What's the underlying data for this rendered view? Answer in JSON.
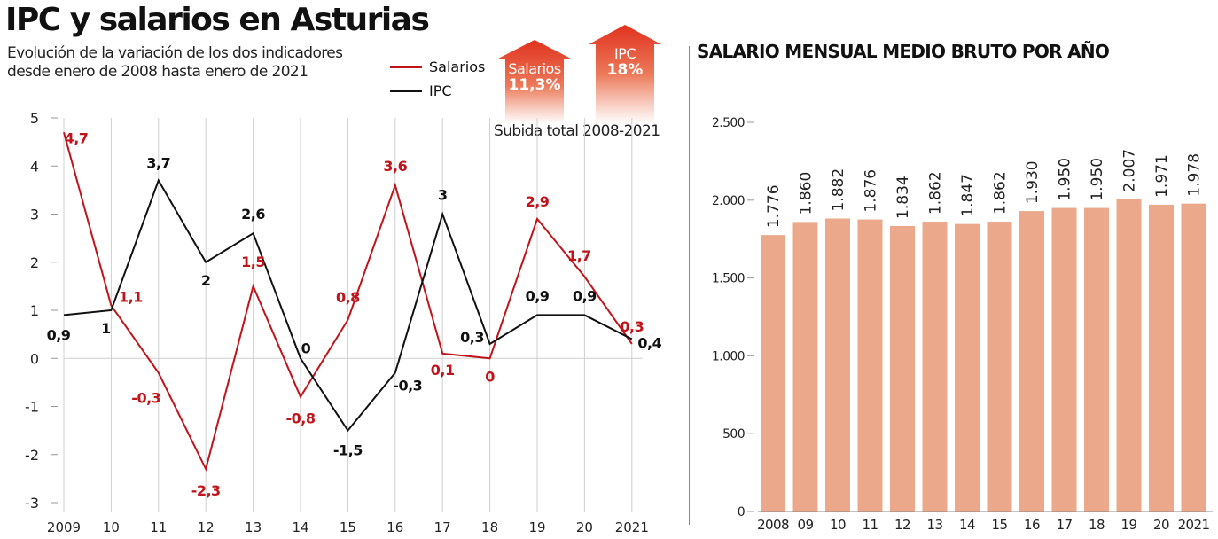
{
  "header": {
    "title": "IPC y salarios en Asturias",
    "subtitle_line1": "Evolución de la variación de los dos indicadores",
    "subtitle_line2": "desde enero de 2008 hasta enero de 2021"
  },
  "legend": {
    "items": [
      {
        "label": "Salarios",
        "color": "#c0141b"
      },
      {
        "label": "IPC",
        "color": "#111111"
      }
    ]
  },
  "total_rise": {
    "caption": "Subida total 2008-2021",
    "salarios": {
      "label": "Salarios",
      "value": "11,3%"
    },
    "ipc": {
      "label": "IPC",
      "value": "18%"
    },
    "arrow_color": "#e0321e"
  },
  "right_panel": {
    "title": "SALARIO MENSUAL MEDIO BRUTO POR AÑO"
  },
  "chart_data": [
    {
      "type": "line",
      "title": "IPC y salarios en Asturias",
      "xlabel": "",
      "ylabel": "",
      "x": [
        "2009",
        "10",
        "11",
        "12",
        "13",
        "14",
        "15",
        "16",
        "17",
        "18",
        "19",
        "20",
        "2021"
      ],
      "ylim": [
        -3,
        5
      ],
      "yticks": [
        5,
        4,
        3,
        2,
        1,
        0,
        -1,
        -2,
        -3
      ],
      "ytick_labels": [
        "5",
        "4",
        "3",
        "2",
        "1",
        "0",
        "-1",
        "-2",
        "-3"
      ],
      "grid": "vertical",
      "legend": "top-right",
      "series": [
        {
          "name": "Salarios",
          "color": "#c0141b",
          "values": [
            4.7,
            1.1,
            -0.3,
            -2.3,
            1.5,
            -0.8,
            0.8,
            3.6,
            0.1,
            0,
            2.9,
            1.7,
            0.3
          ],
          "labels": [
            "4,7",
            "1,1",
            "-0,3",
            "-2,3",
            "1,5",
            "-0,8",
            "0,8",
            "3,6",
            "0,1",
            "0",
            "2,9",
            "1,7",
            "0,3"
          ]
        },
        {
          "name": "IPC",
          "color": "#111111",
          "values": [
            0.9,
            1,
            3.7,
            2,
            2.6,
            0,
            -1.5,
            -0.3,
            3,
            0.3,
            0.9,
            0.9,
            0.4
          ],
          "labels": [
            "0,9",
            "1",
            "3,7",
            "2",
            "2,6",
            "0",
            "-1,5",
            "-0,3",
            "3",
            "0,3",
            "0,9",
            "0,9",
            "0,4"
          ]
        }
      ]
    },
    {
      "type": "bar",
      "title": "SALARIO MENSUAL MEDIO BRUTO POR AÑO",
      "xlabel": "",
      "ylabel": "",
      "categories": [
        "2008",
        "09",
        "10",
        "11",
        "12",
        "13",
        "14",
        "15",
        "16",
        "17",
        "18",
        "19",
        "20",
        "2021"
      ],
      "values": [
        1776,
        1860,
        1882,
        1876,
        1834,
        1862,
        1847,
        1862,
        1930,
        1950,
        1950,
        2007,
        1971,
        1978
      ],
      "value_labels": [
        "1.776",
        "1.860",
        "1.882",
        "1.876",
        "1.834",
        "1.862",
        "1.847",
        "1.862",
        "1.930",
        "1.950",
        "1.950",
        "2.007",
        "1.971",
        "1.978"
      ],
      "ylim": [
        0,
        2500
      ],
      "yticks": [
        0,
        500,
        1000,
        1500,
        2000,
        2500
      ],
      "ytick_labels": [
        "0",
        "500",
        "1.000",
        "1.500",
        "2.000",
        "2.500"
      ],
      "bar_color": "#eba88a",
      "grid": "none"
    }
  ]
}
